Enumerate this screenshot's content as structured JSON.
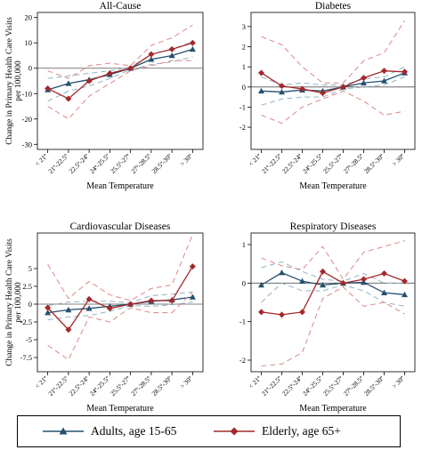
{
  "legend": {
    "adults_label": "Adults, age 15-65",
    "elderly_label": "Elderly, age 65+"
  },
  "colors": {
    "adults": "#24506e",
    "adults_ci": "#8fb2c4",
    "elderly": "#a4282a",
    "elderly_ci": "#d98888",
    "zero_line": "#555555"
  },
  "shared": {
    "ylabel": "Change in Primary Health Care Visits per 100,000",
    "xlabel": "Mean Temperature",
    "categories": [
      "< 21º",
      "21º-22.5º",
      "22.5º-24º",
      "24º-25.5º",
      "25.5º-27º",
      "27º-28.5º",
      "28.5º-30º",
      "> 30º"
    ]
  },
  "chart_data": [
    {
      "type": "line",
      "title": "All-Cause",
      "ylim": [
        -32,
        22
      ],
      "yticks": [
        -30,
        -20,
        -10,
        0,
        10,
        20
      ],
      "ytick_labels": [
        "-30",
        "-20",
        "-10",
        "0",
        "10",
        "20"
      ],
      "show_ylabel": true,
      "series": [
        {
          "name": "Adults, age 15-65",
          "values": [
            -8.5,
            -6,
            -4.5,
            -2.5,
            0,
            3.5,
            5,
            7.5
          ],
          "ci_low": [
            -13,
            -9,
            -7,
            -4,
            -0.5,
            1.5,
            2.5,
            4.5
          ],
          "ci_high": [
            -4,
            -3,
            -2,
            -1,
            0.5,
            5.5,
            7.5,
            10.5
          ]
        },
        {
          "name": "Elderly, age 65+",
          "values": [
            -8,
            -12,
            -5,
            -2,
            0,
            5.5,
            7.5,
            10
          ],
          "ci_low": [
            -15,
            -20,
            -11,
            -6,
            -1,
            1,
            3,
            3
          ],
          "ci_high": [
            -1,
            -4,
            1,
            2,
            1,
            9,
            12,
            17
          ]
        }
      ]
    },
    {
      "type": "line",
      "title": "Diabetes",
      "ylim": [
        -3.1,
        3.7
      ],
      "yticks": [
        -2,
        -1,
        0,
        1,
        2,
        3
      ],
      "ytick_labels": [
        "-2",
        "-1",
        "0",
        "1",
        "2",
        "3"
      ],
      "show_ylabel": false,
      "series": [
        {
          "name": "Adults, age 15-65",
          "values": [
            -0.2,
            -0.25,
            -0.15,
            -0.2,
            0,
            0.2,
            0.3,
            0.7
          ],
          "ci_low": [
            -0.9,
            -0.6,
            -0.5,
            -0.5,
            -0.1,
            0,
            0.1,
            0.5
          ],
          "ci_high": [
            0.5,
            0.1,
            0.2,
            0.1,
            0.1,
            0.4,
            0.5,
            1.0
          ]
        },
        {
          "name": "Elderly, age 65+",
          "values": [
            0.7,
            0.05,
            -0.1,
            -0.3,
            0,
            0.45,
            0.8,
            0.75
          ],
          "ci_low": [
            -1.4,
            -1.8,
            -1.0,
            -0.6,
            -0.2,
            -0.7,
            -1.4,
            -1.2
          ],
          "ci_high": [
            2.5,
            2.1,
            1.0,
            0.2,
            0.2,
            1.3,
            1.7,
            3.3
          ]
        }
      ]
    },
    {
      "type": "line",
      "title": "Cardiovascular Diseases",
      "ylim": [
        -9.5,
        10
      ],
      "yticks": [
        -7.5,
        -5,
        -2.5,
        0,
        2.5,
        5
      ],
      "ytick_labels": [
        "-7.5",
        "-5",
        "-2.5",
        "0",
        "2.5",
        "5"
      ],
      "show_ylabel": true,
      "series": [
        {
          "name": "Adults, age 15-65",
          "values": [
            -1.2,
            -0.8,
            -0.6,
            -0.3,
            0,
            0.4,
            0.6,
            1.0
          ],
          "ci_low": [
            -2.2,
            -1.8,
            -1.6,
            -1.0,
            -0.2,
            -0.3,
            -0.1,
            0.3
          ],
          "ci_high": [
            -0.2,
            0.3,
            0.4,
            0.4,
            0.2,
            1.2,
            1.4,
            1.7
          ]
        },
        {
          "name": "Elderly, age 65+",
          "values": [
            -0.5,
            -3.6,
            0.7,
            -0.6,
            0,
            0.5,
            0.5,
            5.3
          ],
          "ci_low": [
            -5.8,
            -7.8,
            -1.8,
            -2.5,
            -0.5,
            -1.2,
            -1.2,
            1.7
          ],
          "ci_high": [
            5.6,
            0.8,
            3.2,
            1.3,
            0.5,
            2.2,
            2.7,
            9.8
          ]
        }
      ]
    },
    {
      "type": "line",
      "title": "Respiratory Diseases",
      "ylim": [
        -2.3,
        1.3
      ],
      "yticks": [
        -2,
        -1,
        0,
        1
      ],
      "ytick_labels": [
        "-2",
        "-1",
        "0",
        "1"
      ],
      "show_ylabel": false,
      "series": [
        {
          "name": "Adults, age 15-65",
          "values": [
            -0.05,
            0.27,
            0.05,
            -0.05,
            0,
            0.02,
            -0.25,
            -0.3
          ],
          "ci_low": [
            -0.5,
            0.0,
            -0.2,
            -0.2,
            -0.05,
            -0.2,
            -0.5,
            -0.6
          ],
          "ci_high": [
            0.4,
            0.55,
            0.3,
            0.1,
            0.05,
            0.25,
            0.0,
            0.0
          ]
        },
        {
          "name": "Elderly, age 65+",
          "values": [
            -0.75,
            -0.82,
            -0.75,
            0.3,
            0,
            0.1,
            0.25,
            0.05
          ],
          "ci_low": [
            -2.15,
            -2.1,
            -1.8,
            -0.4,
            -0.1,
            -0.6,
            -0.5,
            -0.8
          ],
          "ci_high": [
            0.65,
            0.45,
            0.35,
            0.95,
            0.1,
            0.8,
            0.95,
            1.1
          ]
        }
      ]
    }
  ]
}
